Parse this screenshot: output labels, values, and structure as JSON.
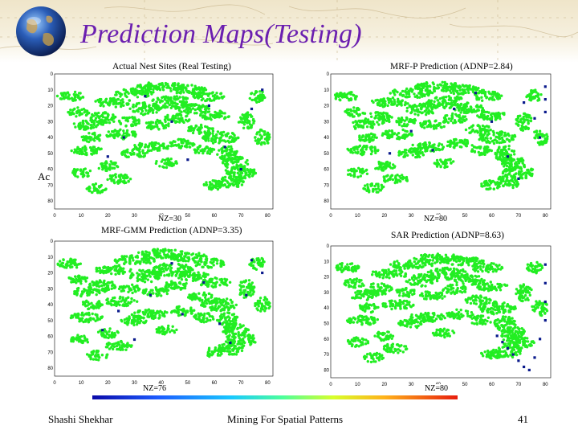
{
  "slide": {
    "title": "Prediction Maps(Testing)",
    "logo_icon": "globe-icon",
    "occluded_text": "Ac"
  },
  "panels": [
    {
      "id": "actual",
      "title": "Actual Nest Sites (Real Testing)",
      "nz_label": "NZ=30",
      "x_ticks": [
        "0",
        "10",
        "20",
        "30",
        "40",
        "50",
        "60",
        "70",
        "80"
      ],
      "y_ticks": [
        "0",
        "10",
        "20",
        "30",
        "40",
        "50",
        "60",
        "70",
        "80"
      ]
    },
    {
      "id": "mrfp",
      "title": "MRF-P Prediction (ADNP=2.84)",
      "nz_label": "NZ=80",
      "x_ticks": [
        "0",
        "10",
        "20",
        "30",
        "40",
        "50",
        "60",
        "70",
        "80"
      ],
      "y_ticks": [
        "0",
        "10",
        "20",
        "30",
        "40",
        "50",
        "60",
        "70",
        "80"
      ]
    },
    {
      "id": "mrfgmm",
      "title": "MRF-GMM Prediction (ADNP=3.35)",
      "nz_label": "NZ=76",
      "x_ticks": [
        "0",
        "10",
        "20",
        "30",
        "40",
        "50",
        "60",
        "70",
        "80"
      ],
      "y_ticks": [
        "0",
        "10",
        "20",
        "30",
        "40",
        "50",
        "60",
        "70",
        "80"
      ]
    },
    {
      "id": "sar",
      "title": "SAR Prediction  (ADNP=8.63)",
      "nz_label": "NZ=80",
      "x_ticks": [
        "0",
        "10",
        "20",
        "30",
        "40",
        "50",
        "60",
        "70",
        "80"
      ],
      "y_ticks": [
        "0",
        "10",
        "20",
        "30",
        "40",
        "50",
        "60",
        "70",
        "80"
      ]
    }
  ],
  "colors": {
    "title": "#6b1fb0",
    "marsh_green": "#22ee22",
    "nest_blue": "#0a1a8c"
  },
  "footer": {
    "author": "Shashi Shekhar",
    "course": "Mining For Spatial Patterns",
    "page_number": "41"
  }
}
